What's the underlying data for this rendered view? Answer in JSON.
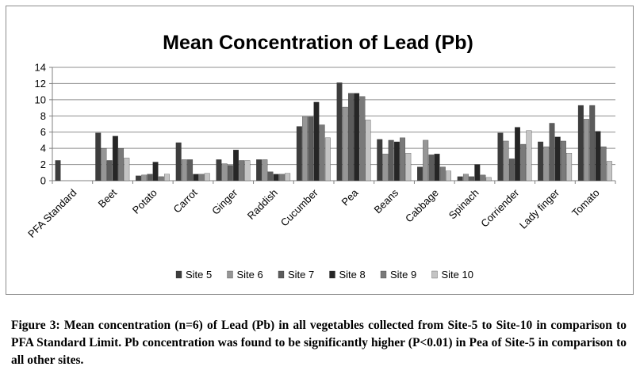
{
  "chart_data": {
    "type": "bar",
    "title": "Mean Concentration of Lead (Pb)",
    "xlabel": "",
    "ylabel": "",
    "ylim": [
      0,
      14
    ],
    "yticks": [
      "0",
      "2",
      "4",
      "6",
      "8",
      "10",
      "12",
      "14"
    ],
    "grid": true,
    "legend_position": "bottom",
    "categories": [
      "PFA Standard",
      "Beet",
      "Potato",
      "Carrot",
      "Ginger",
      "Raddish",
      "Cucumber",
      "Pea",
      "Beans",
      "Cabbage",
      "Spinach",
      "Corriender",
      "Lady finger",
      "Tomato"
    ],
    "series": [
      {
        "name": "Site 5",
        "color": "#3d3d3d",
        "values": [
          2.5,
          5.9,
          0.6,
          4.7,
          2.6,
          2.6,
          6.7,
          12.1,
          5.1,
          1.7,
          0.5,
          5.9,
          4.8,
          9.3
        ]
      },
      {
        "name": "Site 6",
        "color": "#969696",
        "values": [
          null,
          4.0,
          0.7,
          2.6,
          2.1,
          2.6,
          7.9,
          9.1,
          3.3,
          5.0,
          0.8,
          4.9,
          4.2,
          7.6
        ]
      },
      {
        "name": "Site 7",
        "color": "#5c5c5c",
        "values": [
          null,
          2.5,
          0.8,
          2.6,
          1.9,
          1.1,
          7.9,
          10.8,
          5.0,
          3.2,
          0.5,
          2.7,
          7.1,
          9.3
        ]
      },
      {
        "name": "Site 8",
        "color": "#262626",
        "values": [
          null,
          5.5,
          2.3,
          0.8,
          3.8,
          0.8,
          9.7,
          10.8,
          4.8,
          3.3,
          2.0,
          6.6,
          5.4,
          6.1
        ]
      },
      {
        "name": "Site 9",
        "color": "#7a7a7a",
        "values": [
          null,
          4.0,
          0.5,
          0.8,
          2.5,
          0.8,
          6.9,
          10.4,
          5.3,
          1.7,
          0.7,
          4.5,
          4.9,
          4.2
        ]
      },
      {
        "name": "Site 10",
        "color": "#c4c4c4",
        "values": [
          null,
          2.8,
          0.8,
          0.9,
          2.5,
          0.9,
          5.3,
          7.5,
          3.4,
          1.2,
          0.4,
          6.2,
          3.4,
          2.4
        ]
      }
    ]
  },
  "caption": "Figure 3: Mean concentration (n=6) of Lead (Pb) in all vegetables collected from Site-5 to Site-10 in comparison to PFA Standard Limit. Pb concentration was found to be significantly higher (P<0.01) in Pea of Site-5 in comparison to all other sites."
}
